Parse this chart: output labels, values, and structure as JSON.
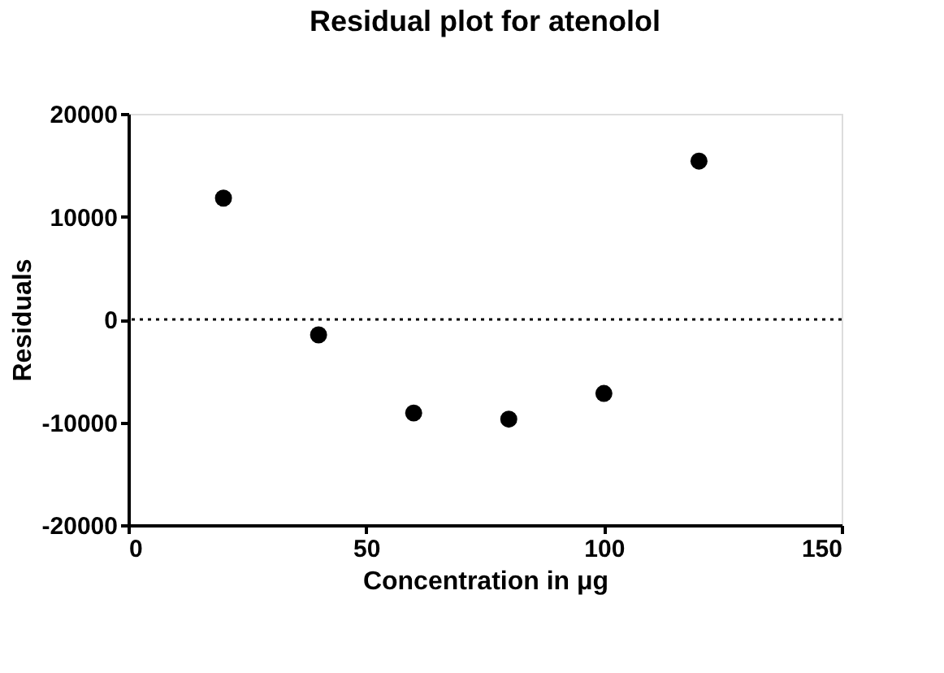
{
  "chart_data": {
    "type": "scatter",
    "title": "Residual plot for atenolol",
    "xlabel": "Concentration in μg",
    "ylabel": "Residuals",
    "x": [
      20,
      40,
      60,
      80,
      100,
      120
    ],
    "series": [
      {
        "color": "#000000",
        "values": [
          11800,
          -1500,
          -9100,
          -9700,
          -7200,
          15400
        ]
      }
    ],
    "xlim": [
      0,
      150
    ],
    "xticks": [
      0,
      50,
      100,
      150
    ],
    "ylim": [
      -20000,
      20000
    ],
    "yticks": [
      -20000,
      -10000,
      0,
      10000,
      20000
    ],
    "ref_lines": [
      {
        "axis": "y",
        "value": 0,
        "line_style": "dotted",
        "color": "#000000"
      }
    ],
    "marker": "circle",
    "grid": false
  }
}
